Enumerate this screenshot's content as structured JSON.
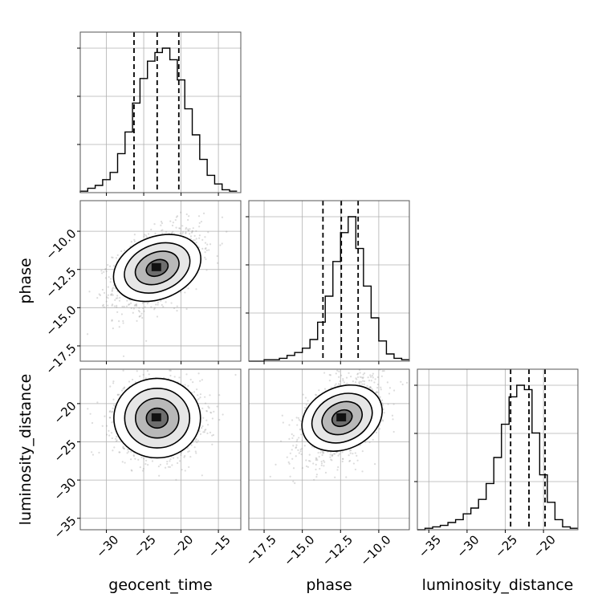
{
  "chart_data": {
    "type": "corner",
    "parameters": [
      "geocent_time",
      "phase",
      "luminosity_distance"
    ],
    "axis_labels": {
      "x": [
        "geocent_time",
        "phase",
        "luminosity_distance"
      ],
      "y": [
        "",
        "phase",
        "luminosity_distance"
      ]
    },
    "ranges": {
      "geocent_time": [
        -33.5,
        -12.0
      ],
      "phase": [
        -18.5,
        -8.0
      ],
      "luminosity_distance": [
        -36.5,
        -15.5
      ]
    },
    "ticks": {
      "geocent_time": [
        -30,
        -25,
        -20,
        -15
      ],
      "phase": [
        -17.5,
        -15.0,
        -12.5,
        -10.0
      ],
      "luminosity_distance": [
        -35,
        -30,
        -25,
        -20
      ]
    },
    "tick_labels": {
      "geocent_time": [
        "−30",
        "−25",
        "−20",
        "−15"
      ],
      "phase": [
        "−17.5",
        "−15.0",
        "−12.5",
        "−10.0"
      ],
      "luminosity_distance": [
        "−35",
        "−30",
        "−25",
        "−20"
      ]
    },
    "diag_hist_yticks": [
      0.3,
      0.6,
      0.9
    ],
    "histograms": {
      "geocent_time": {
        "bin_start": -33.5,
        "bin_width": 1.0,
        "counts": [
          0.01,
          0.03,
          0.05,
          0.09,
          0.14,
          0.27,
          0.42,
          0.62,
          0.79,
          0.91,
          0.97,
          1.0,
          0.92,
          0.78,
          0.58,
          0.4,
          0.23,
          0.12,
          0.06,
          0.02,
          0.01
        ]
      },
      "phase": {
        "bin_start": -18.5,
        "bin_width": 0.5,
        "counts": [
          0,
          0,
          0.01,
          0.01,
          0.02,
          0.04,
          0.06,
          0.09,
          0.15,
          0.27,
          0.45,
          0.69,
          0.89,
          1.0,
          0.78,
          0.52,
          0.3,
          0.14,
          0.05,
          0.02,
          0.01
        ]
      },
      "luminosity_distance": {
        "bin_start": -36.5,
        "bin_width": 1.0,
        "counts": [
          0,
          0.01,
          0.02,
          0.03,
          0.05,
          0.07,
          0.11,
          0.15,
          0.21,
          0.32,
          0.5,
          0.73,
          0.92,
          1.0,
          0.97,
          0.67,
          0.38,
          0.19,
          0.07,
          0.02,
          0.01
        ]
      }
    },
    "quantiles": {
      "geocent_time": [
        -26.3,
        -23.2,
        -20.3
      ],
      "phase": [
        -13.65,
        -12.45,
        -11.35
      ],
      "luminosity_distance": [
        -24.3,
        -21.9,
        -19.8
      ]
    },
    "joint_2d": [
      {
        "x": "geocent_time",
        "y": "phase",
        "center": [
          -23.2,
          -12.4
        ],
        "sd": [
          2.9,
          1.3
        ],
        "rho": 0.45,
        "contour_sigmas": [
          0.5,
          1.0,
          1.5,
          2.0
        ]
      },
      {
        "x": "geocent_time",
        "y": "luminosity_distance",
        "center": [
          -23.2,
          -21.9
        ],
        "sd": [
          2.9,
          2.6
        ],
        "rho": 0.0,
        "contour_sigmas": [
          0.5,
          1.0,
          1.5,
          2.0
        ]
      },
      {
        "x": "phase",
        "y": "luminosity_distance",
        "center": [
          -12.4,
          -21.9
        ],
        "sd": [
          1.3,
          2.6
        ],
        "rho": 0.45,
        "contour_sigmas": [
          0.5,
          1.0,
          1.5,
          2.0
        ]
      }
    ],
    "grid": true,
    "colors": {
      "hist": "#000000",
      "points": "#9a9a9a",
      "grid": "#b0b0b0",
      "density": "#000000"
    }
  }
}
